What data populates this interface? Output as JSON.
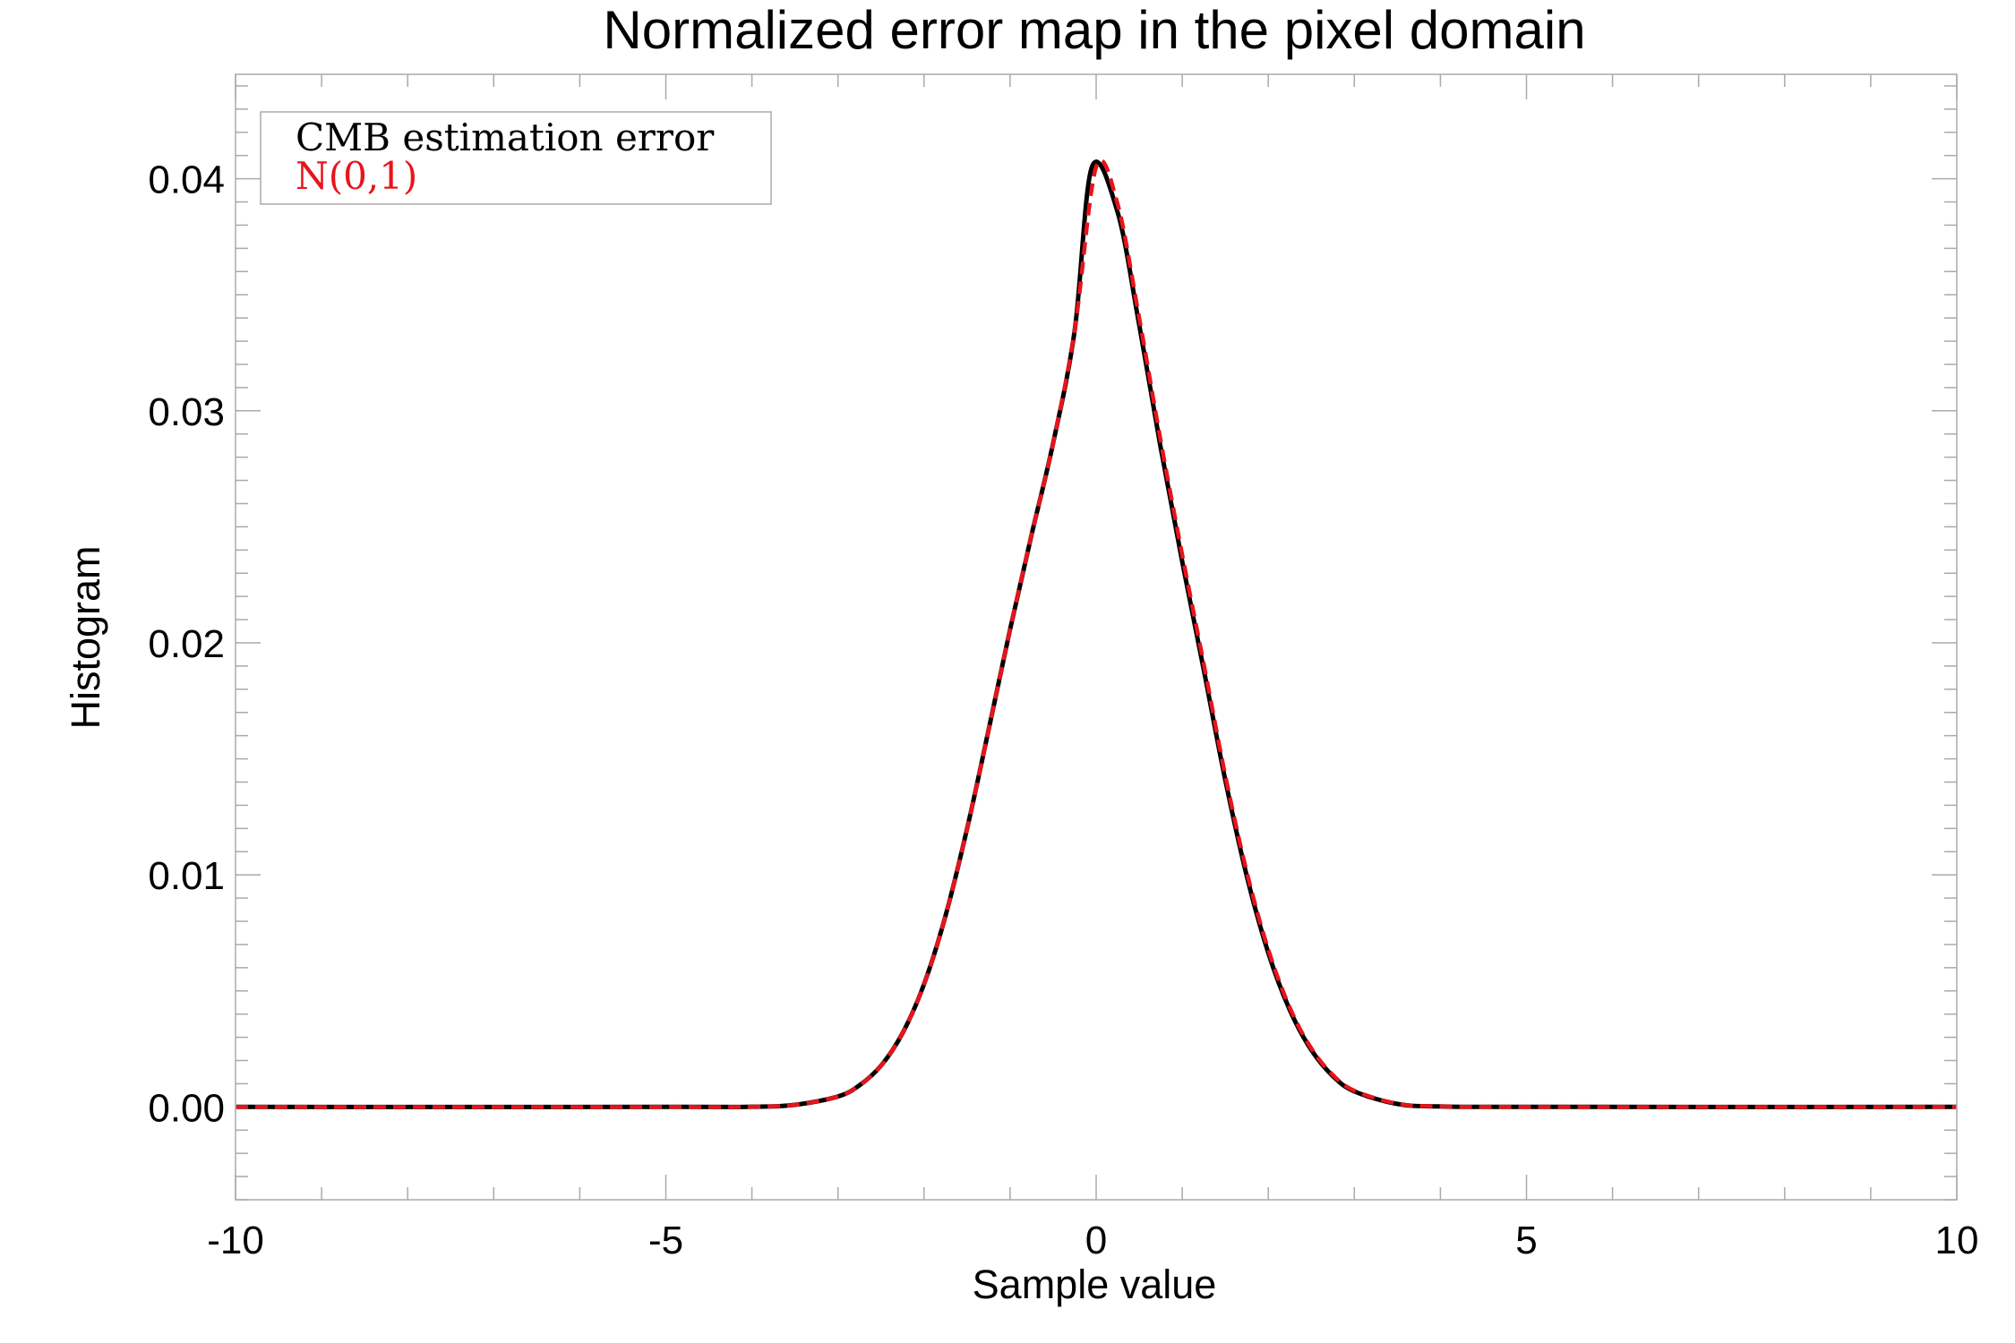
{
  "chart_data": {
    "type": "line",
    "title": "Normalized error map in the pixel domain",
    "xlabel": "Sample value",
    "ylabel": "Histogram",
    "xlim": [
      -10,
      10
    ],
    "ylim": [
      -0.004,
      0.0445
    ],
    "x_ticks": [
      -10,
      -5,
      0,
      5,
      10
    ],
    "x_tick_labels": [
      "-10",
      "-5",
      "0",
      "5",
      "10"
    ],
    "y_ticks": [
      0.0,
      0.01,
      0.02,
      0.03,
      0.04
    ],
    "y_tick_labels": [
      "0.00",
      "0.01",
      "0.02",
      "0.03",
      "0.04"
    ],
    "grid": false,
    "legend_position": "top-left",
    "series": [
      {
        "name": "CMB estimation error",
        "color": "#000000",
        "style": "solid",
        "x": [
          -10,
          -5,
          -4,
          -3.5,
          -3,
          -2.75,
          -2.5,
          -2.25,
          -2,
          -1.75,
          -1.5,
          -1.25,
          -1,
          -0.75,
          -0.5,
          -0.25,
          -0.05,
          0.25,
          0.5,
          0.75,
          1,
          1.25,
          1.5,
          1.75,
          2,
          2.25,
          2.5,
          2.75,
          3,
          3.5,
          4,
          5,
          10
        ],
        "y": [
          0.0,
          0.0,
          1e-05,
          9e-05,
          0.00045,
          0.00093,
          0.00178,
          0.00318,
          0.00529,
          0.00824,
          0.01198,
          0.01625,
          0.02058,
          0.02466,
          0.0286,
          0.03346,
          0.0405,
          0.03855,
          0.0337,
          0.0284,
          0.0235,
          0.01885,
          0.0141,
          0.00995,
          0.00664,
          0.00418,
          0.00245,
          0.00133,
          0.00067,
          0.00013,
          2e-05,
          0.0,
          0.0
        ]
      },
      {
        "name": "N(0,1)",
        "color": "#e8141c",
        "style": "dashed",
        "x": [
          -10,
          -5,
          -4,
          -3.5,
          -3,
          -2.75,
          -2.5,
          -2.25,
          -2,
          -1.75,
          -1.5,
          -1.25,
          -1,
          -0.75,
          -0.5,
          -0.25,
          0,
          0.25,
          0.5,
          0.75,
          1,
          1.25,
          1.5,
          1.75,
          2,
          2.25,
          2.5,
          2.75,
          3,
          3.5,
          4,
          5,
          10
        ],
        "y": [
          0.0,
          0.0,
          1e-05,
          9e-05,
          0.00045,
          0.00093,
          0.00178,
          0.00318,
          0.00529,
          0.00824,
          0.01198,
          0.01625,
          0.02058,
          0.02466,
          0.0286,
          0.03346,
          0.0405,
          0.0389,
          0.034,
          0.0287,
          0.0238,
          0.0191,
          0.0143,
          0.01012,
          0.00678,
          0.00428,
          0.00252,
          0.00138,
          0.0007,
          0.00014,
          2e-05,
          0.0,
          0.0
        ]
      }
    ]
  }
}
